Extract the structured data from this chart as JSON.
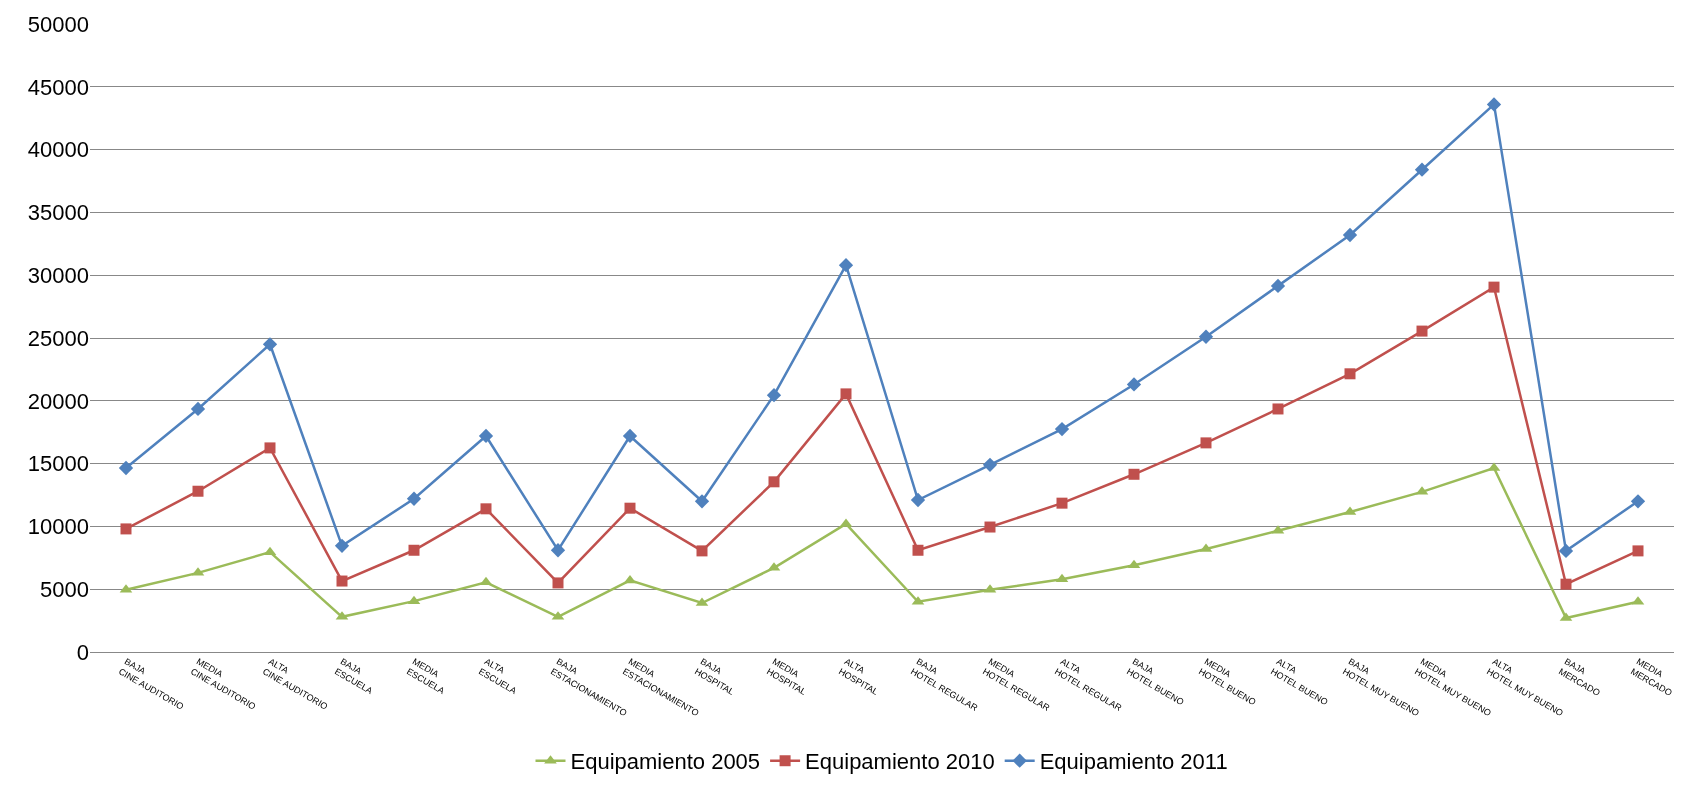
{
  "chart_data": {
    "type": "line",
    "categories": [
      "BAJA\nCINE AUDITORIO",
      "MEDIA\nCINE AUDITORIO",
      "ALTA\nCINE AUDITORIO",
      "BAJA\nESCUELA",
      "MEDIA\nESCUELA",
      "ALTA\nESCUELA",
      "BAJA\nESTACIONAMIENTO",
      "MEDIA\nESTACIONAMIENTO",
      "BAJA\nHOSPITAL",
      "MEDIA\nHOSPITAL",
      "ALTA\nHOSPITAL",
      "BAJA\nHOTEL REGULAR",
      "MEDIA\nHOTEL REGULAR",
      "ALTA\nHOTEL REGULAR",
      "BAJA\nHOTEL BUENO",
      "MEDIA\nHOTEL BUENO",
      "ALTA\nHOTEL BUENO",
      "BAJA\nHOTEL MUY BUENO",
      "MEDIA\nHOTEL MUY BUENO",
      "ALTA\nHOTEL MUY BUENO",
      "BAJA\nMERCADO",
      "MEDIA\nMERCADO"
    ],
    "series": [
      {
        "name": "Equipamiento 2005",
        "color": "#9bbb59",
        "marker": "triangle",
        "values": [
          4950,
          6300,
          7950,
          2800,
          4050,
          5550,
          2800,
          5700,
          3900,
          6700,
          10200,
          4000,
          4950,
          5800,
          6900,
          8200,
          9650,
          11150,
          12750,
          14650,
          2700,
          4000
        ]
      },
      {
        "name": "Equipamiento 2010",
        "color": "#c0504d",
        "marker": "square",
        "values": [
          9800,
          12800,
          16250,
          5650,
          8100,
          11400,
          5500,
          11450,
          8050,
          13550,
          20550,
          8100,
          9950,
          11850,
          14150,
          16650,
          19350,
          22150,
          25550,
          29050,
          5400,
          8050
        ]
      },
      {
        "name": "Equipamiento 2011",
        "color": "#4f81bd",
        "marker": "diamond",
        "values": [
          14650,
          19350,
          24500,
          8450,
          12200,
          17200,
          8100,
          17200,
          12000,
          20450,
          30800,
          12100,
          14900,
          17750,
          21300,
          25100,
          29150,
          33200,
          38400,
          43600,
          8050,
          12000
        ]
      }
    ],
    "ylim": [
      0,
      50000
    ],
    "yticks": [
      0,
      5000,
      10000,
      15000,
      20000,
      25000,
      30000,
      35000,
      40000,
      45000,
      50000
    ],
    "grid": "y",
    "legend": "bottom",
    "line_style": "solid"
  }
}
